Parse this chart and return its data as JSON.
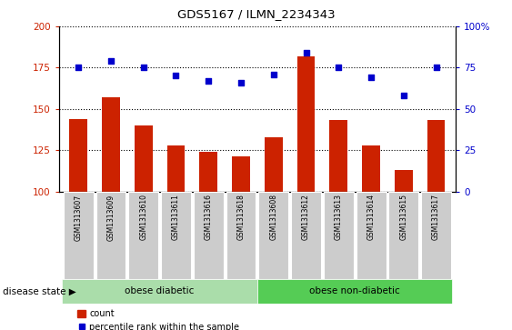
{
  "title": "GDS5167 / ILMN_2234343",
  "samples": [
    "GSM1313607",
    "GSM1313609",
    "GSM1313610",
    "GSM1313611",
    "GSM1313616",
    "GSM1313618",
    "GSM1313608",
    "GSM1313612",
    "GSM1313613",
    "GSM1313614",
    "GSM1313615",
    "GSM1313617"
  ],
  "bar_values": [
    144,
    157,
    140,
    128,
    124,
    121,
    133,
    182,
    143,
    128,
    113,
    143
  ],
  "dot_values": [
    75,
    79,
    75,
    70,
    67,
    66,
    71,
    84,
    75,
    69,
    58,
    75
  ],
  "bar_color": "#cc2200",
  "dot_color": "#0000cc",
  "ylim_left": [
    100,
    200
  ],
  "ylim_right": [
    0,
    100
  ],
  "yticks_left": [
    100,
    125,
    150,
    175,
    200
  ],
  "yticks_right": [
    0,
    25,
    50,
    75,
    100
  ],
  "group1_label": "obese diabetic",
  "group2_label": "obese non-diabetic",
  "group1_count": 6,
  "group2_count": 6,
  "group_color1": "#aaddaa",
  "group_color2": "#55cc55",
  "disease_state_label": "disease state",
  "legend_bar_label": "count",
  "legend_dot_label": "percentile rank within the sample",
  "tick_label_bg": "#cccccc",
  "bar_width": 0.55
}
